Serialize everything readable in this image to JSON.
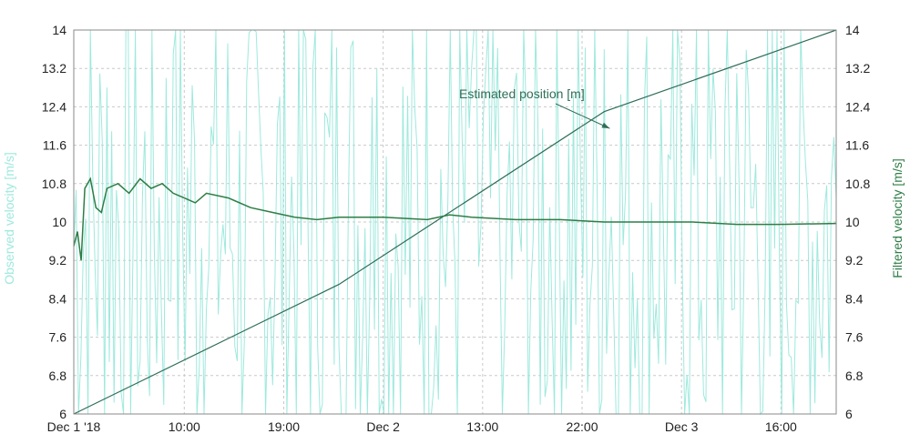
{
  "chart_data": {
    "type": "line",
    "title": "",
    "x_axis": {
      "type": "time",
      "range": [
        "2018-12-01T00:00",
        "2018-12-03T21:00"
      ],
      "tick_labels": [
        "Dec 1 '18",
        "10:00",
        "19:00",
        "Dec 2",
        "13:00",
        "22:00",
        "Dec 3",
        "16:00"
      ],
      "tick_times": [
        "2018-12-01T00:00",
        "2018-12-01T10:00",
        "2018-12-01T19:00",
        "2018-12-02T04:00",
        "2018-12-02T13:00",
        "2018-12-02T22:00",
        "2018-12-03T07:00",
        "2018-12-03T16:00"
      ],
      "grid": true
    },
    "y_left": {
      "label": "Observed velocity [m/s]",
      "range": [
        6,
        14
      ],
      "tick_labels": [
        "6",
        "6.8",
        "7.6",
        "8.4",
        "9.2",
        "10",
        "10.8",
        "11.6",
        "12.4",
        "13.2",
        "14"
      ],
      "grid": true
    },
    "y_right": {
      "label": "Filtered velocity [m/s]",
      "range": [
        6,
        14
      ],
      "tick_labels": [
        "6",
        "6.8",
        "7.6",
        "8.4",
        "9.2",
        "10",
        "10.8",
        "11.6",
        "12.4",
        "13.2",
        "14"
      ]
    },
    "series": [
      {
        "role": "observed",
        "color": "#9ee9dd",
        "axis": "left",
        "note_values": "noisy signal oscillating around 10 m/s, amplitude roughly ±6 m/s, frequently clipped at axis limits 6 and 14",
        "x": [
          "2018-12-01T00:00",
          "2018-12-01T03:00",
          "2018-12-01T06:00",
          "2018-12-01T09:00",
          "2018-12-01T12:00",
          "2018-12-01T15:00",
          "2018-12-01T18:00",
          "2018-12-01T21:00",
          "2018-12-02T00:00",
          "2018-12-02T03:00",
          "2018-12-02T06:00",
          "2018-12-02T09:00",
          "2018-12-02T12:00",
          "2018-12-02T15:00",
          "2018-12-02T18:00",
          "2018-12-02T21:00",
          "2018-12-03T00:00",
          "2018-12-03T03:00",
          "2018-12-03T06:00",
          "2018-12-03T09:00",
          "2018-12-03T12:00",
          "2018-12-03T15:00",
          "2018-12-03T18:00",
          "2018-12-03T21:00"
        ],
        "y": [
          9.5,
          12.8,
          7.1,
          13.5,
          8.2,
          11.9,
          6.6,
          13.8,
          7.4,
          12.6,
          8.9,
          6.3,
          13.2,
          7.8,
          12.1,
          6.9,
          13.6,
          8.4,
          11.3,
          6.4,
          13.1,
          7.2,
          12.4,
          10.5
        ]
      },
      {
        "name": "Filtered velocity [m/s]",
        "role": "filtered",
        "color": "#2e7d46",
        "axis": "right",
        "x": [
          "2018-12-01T00:00",
          "2018-12-01T00:20",
          "2018-12-01T00:40",
          "2018-12-01T01:00",
          "2018-12-01T01:30",
          "2018-12-01T02:00",
          "2018-12-01T02:30",
          "2018-12-01T03:00",
          "2018-12-01T04:00",
          "2018-12-01T05:00",
          "2018-12-01T06:00",
          "2018-12-01T07:00",
          "2018-12-01T08:00",
          "2018-12-01T09:00",
          "2018-12-01T10:00",
          "2018-12-01T11:00",
          "2018-12-01T12:00",
          "2018-12-01T14:00",
          "2018-12-01T16:00",
          "2018-12-01T18:00",
          "2018-12-01T20:00",
          "2018-12-01T22:00",
          "2018-12-02T00:00",
          "2018-12-02T04:00",
          "2018-12-02T08:00",
          "2018-12-02T10:00",
          "2018-12-02T12:00",
          "2018-12-02T16:00",
          "2018-12-02T20:00",
          "2018-12-03T00:00",
          "2018-12-03T04:00",
          "2018-12-03T08:00",
          "2018-12-03T12:00",
          "2018-12-03T16:00",
          "2018-12-03T21:00"
        ],
        "y": [
          9.5,
          9.8,
          9.2,
          10.7,
          10.9,
          10.3,
          10.2,
          10.7,
          10.8,
          10.6,
          10.9,
          10.7,
          10.8,
          10.6,
          10.5,
          10.4,
          10.6,
          10.5,
          10.3,
          10.2,
          10.1,
          10.05,
          10.1,
          10.1,
          10.05,
          10.15,
          10.1,
          10.05,
          10.05,
          10.0,
          10.0,
          10.0,
          9.95,
          9.95,
          9.97
        ]
      },
      {
        "name": "Estimated position [m]",
        "role": "position",
        "color": "#2f6e57",
        "axis": "left",
        "x": [
          "2018-12-01T00:00",
          "2018-12-02T00:00",
          "2018-12-03T00:00",
          "2018-12-03T21:00"
        ],
        "y": [
          6.0,
          8.7,
          12.3,
          14.0
        ]
      }
    ],
    "annotations": [
      {
        "text": "Estimated position [m]",
        "points_to_series": "position",
        "target_x": "2018-12-03T00:30",
        "target_y": 11.95
      }
    ],
    "legend": "none"
  }
}
